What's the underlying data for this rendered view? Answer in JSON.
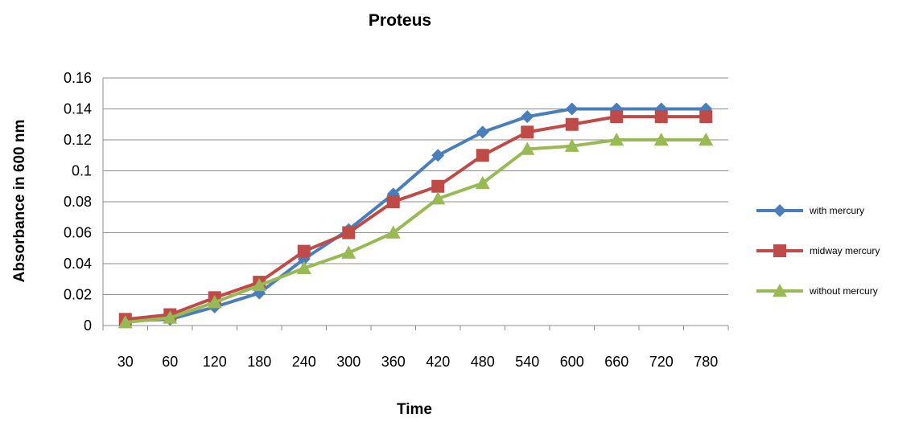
{
  "chart_data": {
    "type": "line",
    "title": "Proteus",
    "xlabel": "Time",
    "ylabel": "Absorbance in 600 nm",
    "categories": [
      "30",
      "60",
      "120",
      "180",
      "240",
      "300",
      "360",
      "420",
      "480",
      "540",
      "600",
      "660",
      "720",
      "780"
    ],
    "ylim": [
      0,
      0.16
    ],
    "yticks": [
      "0",
      "0.02",
      "0.04",
      "0.06",
      "0.08",
      "0.1",
      "0.12",
      "0.14",
      "0.16"
    ],
    "grid": true,
    "legend_position": "right",
    "series": [
      {
        "name": "with mercury",
        "color": "#4a7ebb",
        "marker": "diamond",
        "values": [
          0.003,
          0.004,
          0.012,
          0.021,
          0.043,
          0.062,
          0.085,
          0.11,
          0.125,
          0.135,
          0.14,
          0.14,
          0.14,
          0.14
        ]
      },
      {
        "name": "midway mercury",
        "color": "#be4b48",
        "marker": "square",
        "values": [
          0.004,
          0.007,
          0.018,
          0.028,
          0.048,
          0.06,
          0.08,
          0.09,
          0.11,
          0.125,
          0.13,
          0.135,
          0.135,
          0.135
        ]
      },
      {
        "name": "without mercury",
        "color": "#98b954",
        "marker": "triangle",
        "values": [
          0.002,
          0.005,
          0.015,
          0.026,
          0.037,
          0.047,
          0.06,
          0.082,
          0.092,
          0.114,
          0.116,
          0.12,
          0.12,
          0.12
        ]
      }
    ]
  }
}
